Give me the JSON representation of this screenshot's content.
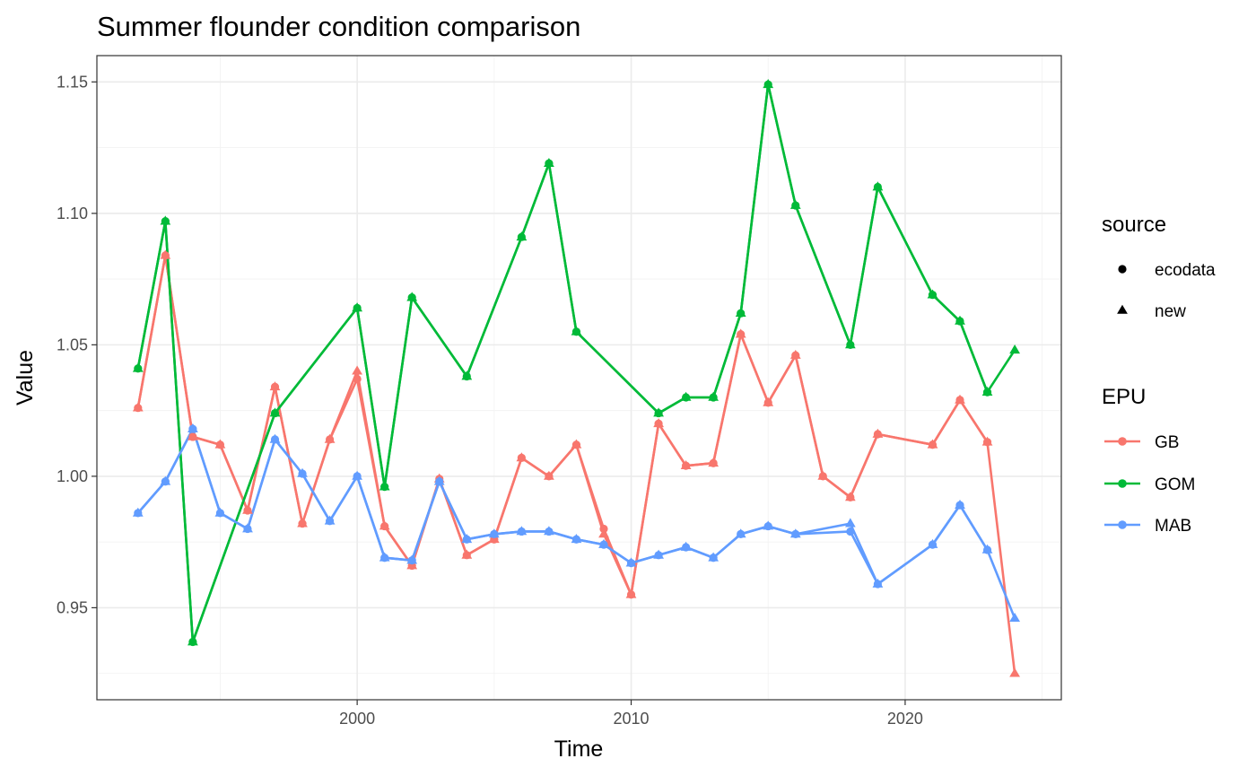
{
  "chart_data": {
    "type": "line",
    "title": "Summer flounder condition comparison",
    "xlabel": "Time",
    "ylabel": "Value",
    "xlim": [
      1990.5,
      2025.7
    ],
    "ylim": [
      0.915,
      1.16
    ],
    "x_ticks": [
      2000,
      2010,
      2020
    ],
    "y_ticks": [
      0.95,
      1.0,
      1.05,
      1.1,
      1.15
    ],
    "y_tick_labels": [
      "0.95",
      "1.00",
      "1.05",
      "1.10",
      "1.15"
    ],
    "grid": true,
    "legend_position": "right",
    "legends": [
      {
        "title": "source",
        "items": [
          {
            "label": "ecodata",
            "shape": "circle"
          },
          {
            "label": "new",
            "shape": "triangle"
          }
        ]
      },
      {
        "title": "EPU",
        "items": [
          {
            "label": "GB",
            "color": "#F8766D"
          },
          {
            "label": "GOM",
            "color": "#00BA38"
          },
          {
            "label": "MAB",
            "color": "#619CFF"
          }
        ]
      }
    ],
    "series": [
      {
        "name": "GB",
        "color": "#F8766D",
        "source": "new",
        "x": [
          1992,
          1993,
          1994,
          1995,
          1996,
          1997,
          1998,
          1999,
          2000,
          2001,
          2002,
          2003,
          2004,
          2005,
          2006,
          2007,
          2008,
          2009,
          2010,
          2011,
          2012,
          2013,
          2014,
          2015,
          2016,
          2017,
          2018,
          2019,
          2021,
          2022,
          2023,
          2024
        ],
        "y": [
          1.026,
          1.084,
          1.015,
          1.012,
          0.987,
          1.034,
          0.982,
          1.014,
          1.04,
          0.981,
          0.966,
          0.999,
          0.97,
          0.976,
          1.007,
          1.0,
          1.012,
          0.978,
          0.955,
          1.02,
          1.004,
          1.005,
          1.054,
          1.028,
          1.046,
          1.0,
          0.992,
          1.016,
          1.012,
          1.029,
          1.013,
          0.925
        ]
      },
      {
        "name": "GB",
        "color": "#F8766D",
        "source": "ecodata",
        "x": [
          1992,
          1993,
          1994,
          1995,
          1996,
          1997,
          1998,
          1999,
          2000,
          2001,
          2002,
          2003,
          2004,
          2005,
          2006,
          2007,
          2008,
          2009,
          2010,
          2011,
          2012,
          2013,
          2014,
          2015,
          2016,
          2017,
          2018,
          2019,
          2021,
          2022,
          2023
        ],
        "y": [
          1.026,
          1.084,
          1.015,
          1.012,
          0.987,
          1.034,
          0.982,
          1.014,
          1.037,
          0.981,
          0.966,
          0.999,
          0.97,
          0.976,
          1.007,
          1.0,
          1.012,
          0.98,
          0.955,
          1.02,
          1.004,
          1.005,
          1.054,
          1.028,
          1.046,
          1.0,
          0.992,
          1.016,
          1.012,
          1.029,
          1.013
        ]
      },
      {
        "name": "GOM",
        "color": "#00BA38",
        "source": "new",
        "x": [
          1992,
          1993,
          1994,
          1997,
          2000,
          2001,
          2002,
          2004,
          2006,
          2007,
          2008,
          2011,
          2012,
          2013,
          2014,
          2015,
          2016,
          2018,
          2019,
          2021,
          2022,
          2023,
          2024
        ],
        "y": [
          1.041,
          1.097,
          0.937,
          1.024,
          1.064,
          0.996,
          1.068,
          1.038,
          1.091,
          1.119,
          1.055,
          1.024,
          1.03,
          1.03,
          1.062,
          1.149,
          1.103,
          1.05,
          1.11,
          1.069,
          1.059,
          1.032,
          1.048
        ]
      },
      {
        "name": "GOM",
        "color": "#00BA38",
        "source": "ecodata",
        "x": [
          1992,
          1993,
          1994,
          1997,
          2000,
          2001,
          2002,
          2004,
          2006,
          2007,
          2008,
          2011,
          2012,
          2013,
          2014,
          2015,
          2016,
          2018,
          2019,
          2021,
          2022,
          2023
        ],
        "y": [
          1.041,
          1.097,
          0.937,
          1.024,
          1.064,
          0.996,
          1.068,
          1.038,
          1.091,
          1.119,
          1.055,
          1.024,
          1.03,
          1.03,
          1.062,
          1.149,
          1.103,
          1.05,
          1.11,
          1.069,
          1.059,
          1.032
        ]
      },
      {
        "name": "MAB",
        "color": "#619CFF",
        "source": "new",
        "x": [
          1992,
          1993,
          1994,
          1995,
          1996,
          1997,
          1998,
          1999,
          2000,
          2001,
          2002,
          2003,
          2004,
          2005,
          2006,
          2007,
          2008,
          2009,
          2010,
          2011,
          2012,
          2013,
          2014,
          2015,
          2016,
          2018,
          2019,
          2021,
          2022,
          2023,
          2024
        ],
        "y": [
          0.986,
          0.998,
          1.018,
          0.986,
          0.98,
          1.014,
          1.001,
          0.983,
          1.0,
          0.969,
          0.968,
          0.998,
          0.976,
          0.978,
          0.979,
          0.979,
          0.976,
          0.974,
          0.967,
          0.97,
          0.973,
          0.969,
          0.978,
          0.981,
          0.978,
          0.982,
          0.959,
          0.974,
          0.989,
          0.972,
          0.946
        ]
      },
      {
        "name": "MAB",
        "color": "#619CFF",
        "source": "ecodata",
        "x": [
          1992,
          1993,
          1994,
          1995,
          1996,
          1997,
          1998,
          1999,
          2000,
          2001,
          2002,
          2003,
          2004,
          2005,
          2006,
          2007,
          2008,
          2009,
          2010,
          2011,
          2012,
          2013,
          2014,
          2015,
          2016,
          2018,
          2019,
          2021,
          2022,
          2023
        ],
        "y": [
          0.986,
          0.998,
          1.018,
          0.986,
          0.98,
          1.014,
          1.001,
          0.983,
          1.0,
          0.969,
          0.968,
          0.998,
          0.976,
          0.978,
          0.979,
          0.979,
          0.976,
          0.974,
          0.967,
          0.97,
          0.973,
          0.969,
          0.978,
          0.981,
          0.978,
          0.979,
          0.959,
          0.974,
          0.989,
          0.972
        ]
      }
    ]
  }
}
